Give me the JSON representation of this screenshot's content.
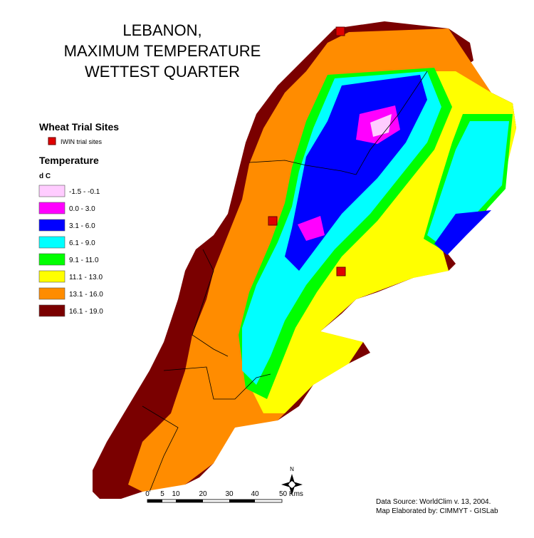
{
  "title": [
    "LEBANON,",
    "MAXIMUM TEMPERATURE",
    "WETTEST QUARTER"
  ],
  "legend": {
    "sites_heading": "Wheat Trial Sites",
    "site_label": "IWIN trial sites",
    "temperature_heading": "Temperature",
    "unit": "d C",
    "classes": [
      {
        "label": "-1.5 - -0.1",
        "color": "#ffccff"
      },
      {
        "label": "0.0 - 3.0",
        "color": "#ff00ff"
      },
      {
        "label": "3.1 - 6.0",
        "color": "#0000ff"
      },
      {
        "label": "6.1 - 9.0",
        "color": "#00ffff"
      },
      {
        "label": "9.1 - 11.0",
        "color": "#00ff00"
      },
      {
        "label": "11.1 - 13.0",
        "color": "#ffff00"
      },
      {
        "label": "13.1 - 16.0",
        "color": "#ff8c00"
      },
      {
        "label": "16.1 - 19.0",
        "color": "#7a0000"
      }
    ]
  },
  "scale_bar": {
    "labels": [
      "0",
      "5",
      "10",
      "20",
      "30",
      "40",
      "50 Kms"
    ]
  },
  "north": "N",
  "source": [
    "Data Source: WorldClim v. 13,  2004.",
    "Map Elaborated by: CIMMYT - GISLab"
  ]
}
